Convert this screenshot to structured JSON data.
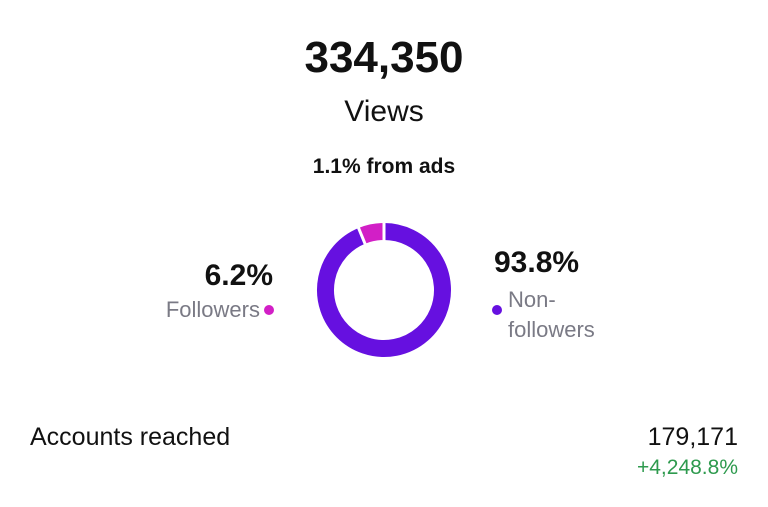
{
  "header": {
    "views_number": "334,350",
    "views_label": "Views",
    "ads_note": "1.1% from ads"
  },
  "chart_data": {
    "type": "donut",
    "categories": [
      "Followers",
      "Non-followers"
    ],
    "values": [
      6.2,
      93.8
    ],
    "value_labels": [
      "6.2%",
      "93.8%"
    ],
    "colors": [
      "#d21fc6",
      "#6610e0"
    ]
  },
  "stats": {
    "label": "Accounts reached",
    "value": "179,171",
    "change": "+4,248.8%"
  }
}
